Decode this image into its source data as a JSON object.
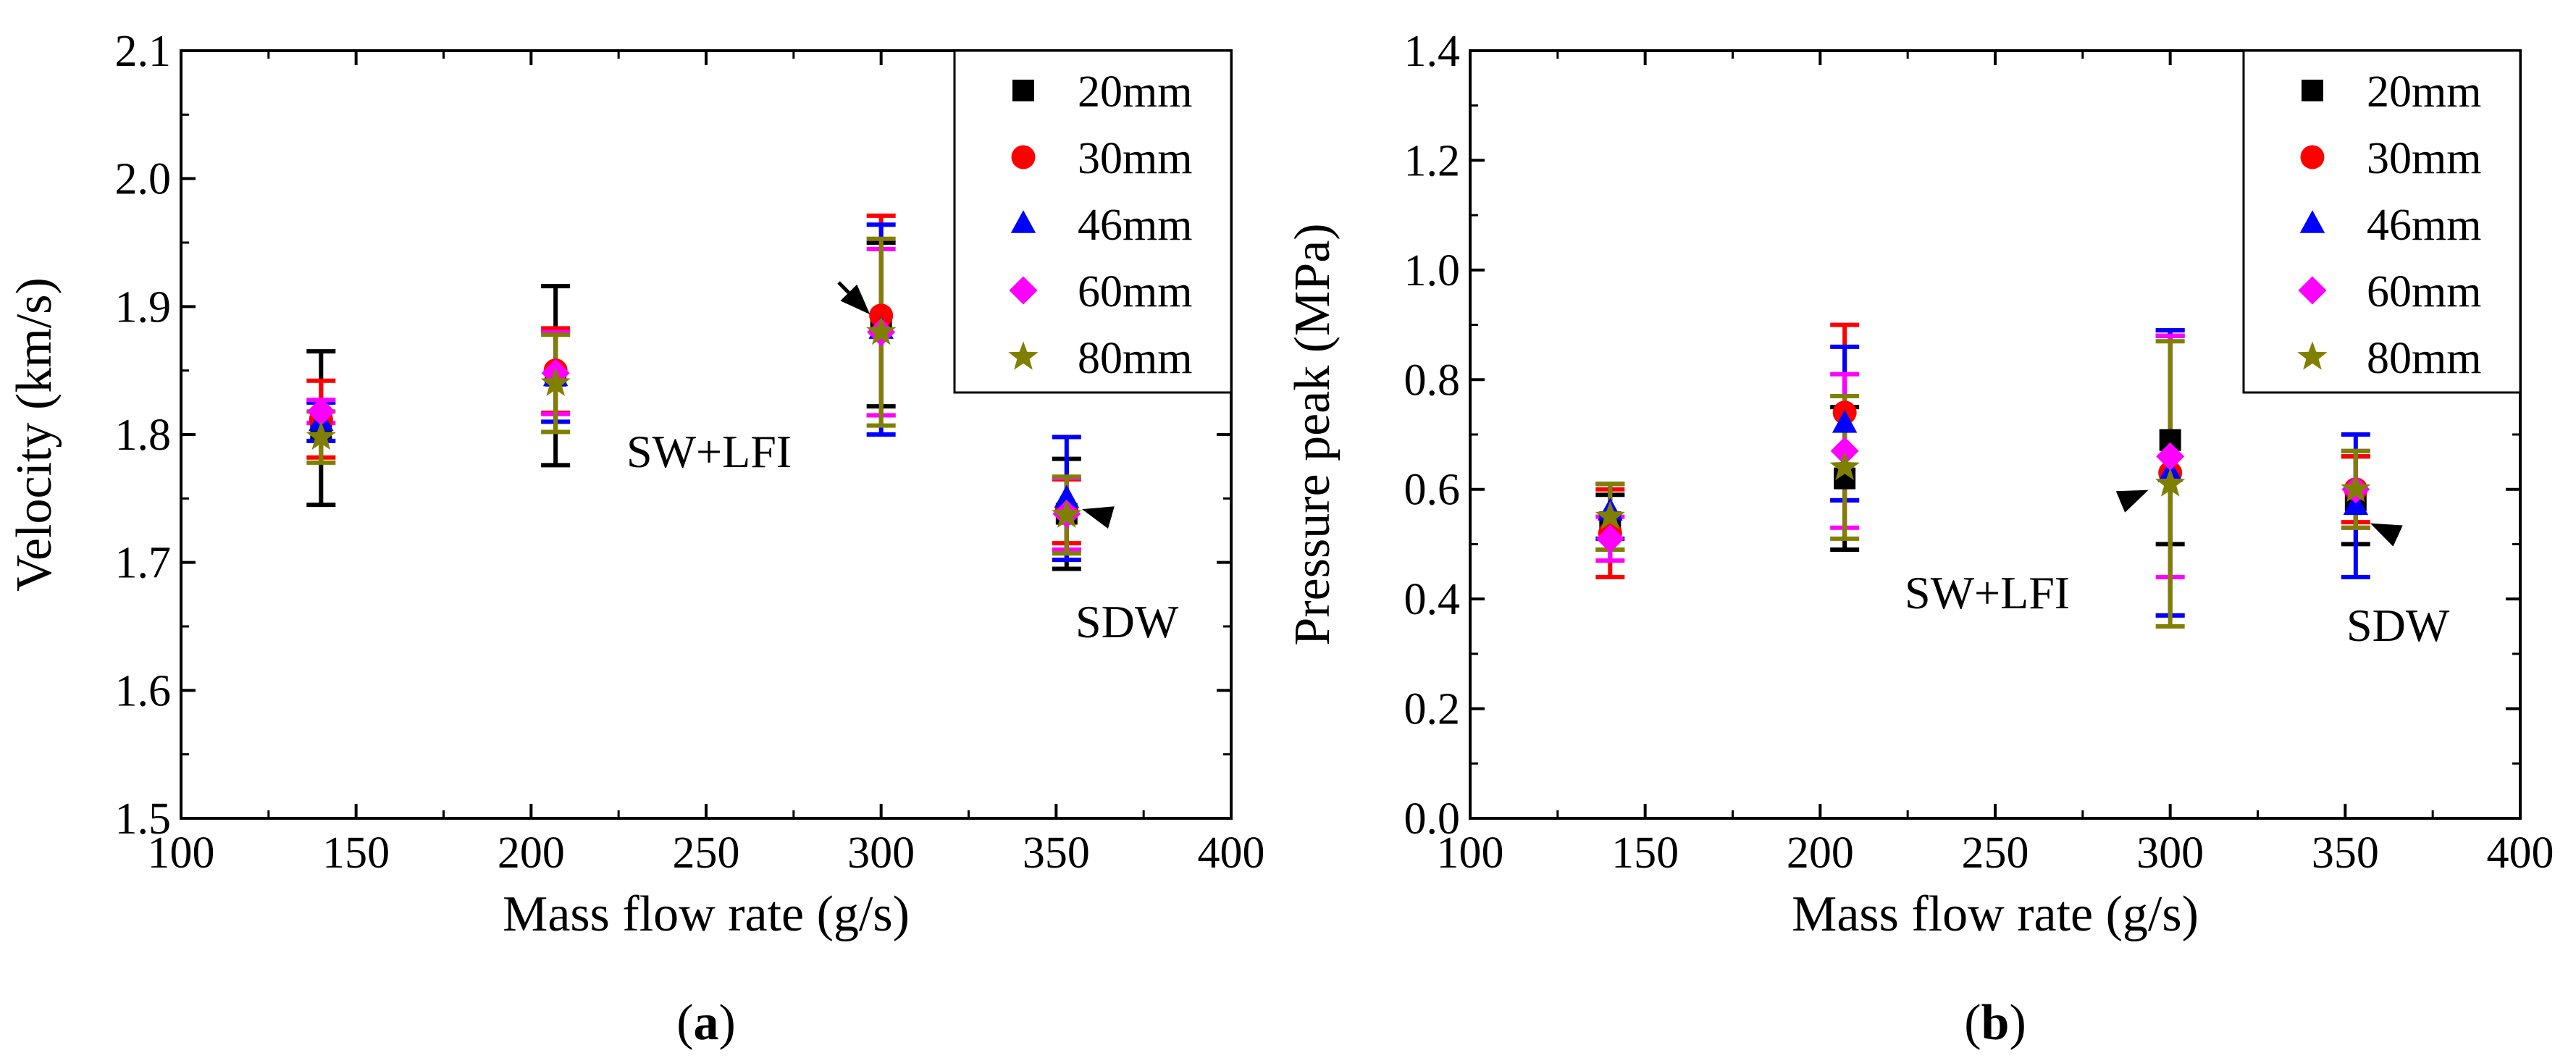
{
  "colors": {
    "20mm": "#000000",
    "30mm": "#ff0000",
    "46mm": "#0000ff",
    "60mm": "#ff00ff",
    "80mm": "#808000"
  },
  "chart_data": [
    {
      "type": "scatter",
      "panel_label_open": "(",
      "panel_label": "a",
      "panel_label_close": ")",
      "xlabel": "Mass flow rate (g/s)",
      "ylabel": "Velocity (km/s)",
      "xlim": [
        100,
        400
      ],
      "ylim": [
        1.5,
        2.1
      ],
      "xticks": [
        100,
        150,
        200,
        250,
        300,
        350,
        400
      ],
      "xtick_labels": [
        "100",
        "150",
        "200",
        "250",
        "300",
        "350",
        "400"
      ],
      "yticks": [
        1.5,
        1.6,
        1.7,
        1.8,
        1.9,
        2.0,
        2.1
      ],
      "ytick_labels": [
        "1.5",
        "1.6",
        "1.7",
        "1.8",
        "1.9",
        "2.0",
        "2.1"
      ],
      "legend_position": "top-right",
      "series": [
        {
          "name": "20mm",
          "marker": "square",
          "x": [
            140,
            207,
            300,
            353
          ],
          "y": [
            1.805,
            1.846,
            1.886,
            1.738
          ],
          "err": [
            0.06,
            0.07,
            0.064,
            0.043
          ]
        },
        {
          "name": "30mm",
          "marker": "circle",
          "x": [
            140,
            207,
            300,
            353
          ],
          "y": [
            1.812,
            1.85,
            1.893,
            1.74
          ],
          "err": [
            0.03,
            0.033,
            0.078,
            0.025
          ]
        },
        {
          "name": "46mm",
          "marker": "triangle",
          "x": [
            140,
            207,
            300,
            353
          ],
          "y": [
            1.81,
            1.845,
            1.882,
            1.75
          ],
          "err": [
            0.015,
            0.035,
            0.082,
            0.048
          ]
        },
        {
          "name": "60mm",
          "marker": "diamond",
          "x": [
            140,
            207,
            300,
            353
          ],
          "y": [
            1.818,
            1.848,
            1.88,
            1.738
          ],
          "err": [
            0.009,
            0.032,
            0.065,
            0.028
          ]
        },
        {
          "name": "80mm",
          "marker": "star",
          "x": [
            140,
            207,
            300,
            353
          ],
          "y": [
            1.798,
            1.84,
            1.88,
            1.737
          ],
          "err": [
            0.02,
            0.038,
            0.073,
            0.03
          ]
        }
      ],
      "annotations": [
        {
          "text": "SW+LFI",
          "points_to": [
            300,
            1.885
          ]
        },
        {
          "text": "SDW",
          "points_to": [
            353,
            1.745
          ]
        }
      ]
    },
    {
      "type": "scatter",
      "panel_label_open": "(",
      "panel_label": "b",
      "panel_label_close": ")",
      "xlabel": "Mass flow rate (g/s)",
      "ylabel": "Pressure peak (MPa)",
      "xlim": [
        100,
        400
      ],
      "ylim": [
        0.0,
        1.4
      ],
      "xticks": [
        100,
        150,
        200,
        250,
        300,
        350,
        400
      ],
      "xtick_labels": [
        "100",
        "150",
        "200",
        "250",
        "300",
        "350",
        "400"
      ],
      "yticks": [
        0.0,
        0.2,
        0.4,
        0.6,
        0.8,
        1.0,
        1.2,
        1.4
      ],
      "ytick_labels": [
        "0.0",
        "0.2",
        "0.4",
        "0.6",
        "0.8",
        "1.0",
        "1.2",
        "1.4"
      ],
      "legend_position": "top-right",
      "series": [
        {
          "name": "20mm",
          "marker": "square",
          "x": [
            140,
            207,
            300,
            353
          ],
          "y": [
            0.54,
            0.62,
            0.69,
            0.58
          ],
          "err": [
            0.05,
            0.13,
            0.19,
            0.08
          ]
        },
        {
          "name": "30mm",
          "marker": "circle",
          "x": [
            140,
            207,
            300,
            353
          ],
          "y": [
            0.52,
            0.74,
            0.63,
            0.6
          ],
          "err": [
            0.08,
            0.16,
            0.26,
            0.06
          ]
        },
        {
          "name": "46mm",
          "marker": "triangle",
          "x": [
            140,
            207,
            300,
            353
          ],
          "y": [
            0.56,
            0.72,
            0.63,
            0.57
          ],
          "err": [
            0.05,
            0.14,
            0.26,
            0.13
          ]
        },
        {
          "name": "60mm",
          "marker": "diamond",
          "x": [
            140,
            207,
            300,
            353
          ],
          "y": [
            0.51,
            0.67,
            0.66,
            0.6
          ],
          "err": [
            0.04,
            0.14,
            0.22,
            0.07
          ]
        },
        {
          "name": "80mm",
          "marker": "star",
          "x": [
            140,
            207,
            300,
            353
          ],
          "y": [
            0.55,
            0.64,
            0.61,
            0.6
          ],
          "err": [
            0.06,
            0.13,
            0.26,
            0.07
          ]
        }
      ],
      "annotations": [
        {
          "text": "SW+LFI",
          "points_to": [
            298,
            0.61
          ]
        },
        {
          "text": "SDW",
          "points_to": [
            353,
            0.55
          ]
        }
      ]
    }
  ]
}
